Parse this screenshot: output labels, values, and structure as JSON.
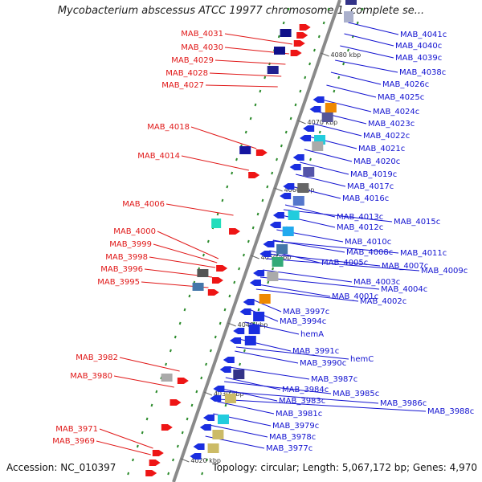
{
  "title": "Mycobacterium abscessus ATCC 19977 chromosome 1, complete se...",
  "accession": "Accession: NC_010397",
  "topology": "Topology: circular; Length: 5,067,172 bp; Genes: 4,970",
  "colors": {
    "forward_label": "#e01818",
    "reverse_label": "#1212d0",
    "backbone": "#8a8a8a"
  },
  "ticks": [
    "4080 kbp",
    "4070 kbp",
    "4060 kbp",
    "4050 kbp",
    "4040 kbp",
    "4030 kbp",
    "4020 kbp"
  ],
  "forward_genes": [
    "MAB_4031",
    "MAB_4030",
    "MAB_4029",
    "MAB_4028",
    "MAB_4027",
    "MAB_4018",
    "MAB_4014",
    "MAB_4006",
    "MAB_4000",
    "MAB_3999",
    "MAB_3998",
    "MAB_3996",
    "MAB_3995",
    "MAB_3982",
    "MAB_3980",
    "MAB_3971",
    "MAB_3969"
  ],
  "reverse_genes": [
    "MAB_4041c",
    "MAB_4040c",
    "MAB_4039c",
    "MAB_4038c",
    "MAB_4026c",
    "MAB_4025c",
    "MAB_4024c",
    "MAB_4023c",
    "MAB_4022c",
    "MAB_4021c",
    "MAB_4020c",
    "MAB_4019c",
    "MAB_4017c",
    "MAB_4016c",
    "MAB_4015c",
    "MAB_4013c",
    "MAB_4012c",
    "MAB_4011c",
    "MAB_4010c",
    "MAB_4009c",
    "MAB_4008c",
    "MAB_4007c",
    "MAB_4005c",
    "MAB_4004c",
    "MAB_4003c",
    "MAB_4002c",
    "MAB_4001c",
    "MAB_3997c",
    "MAB_3994c",
    "hemA",
    "MAB_3991c",
    "hemC",
    "MAB_3990c",
    "MAB_3988c",
    "MAB_3987c",
    "MAB_3986c",
    "MAB_3985c",
    "MAB_3984c",
    "MAB_3983c",
    "MAB_3981c",
    "MAB_3979c",
    "MAB_3978c",
    "MAB_3977c"
  ]
}
